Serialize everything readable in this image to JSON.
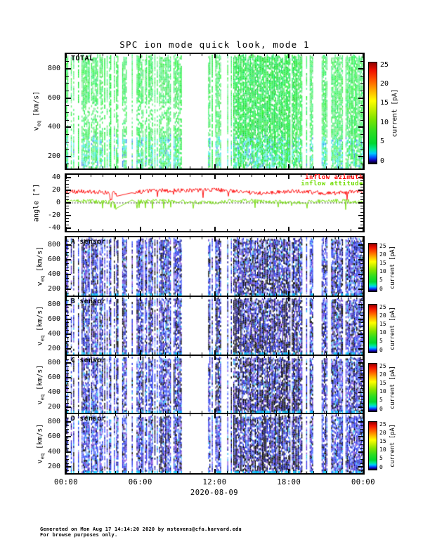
{
  "chart_data": {
    "type": "heatmap",
    "title": "SPC ion mode quick look, mode 1",
    "x_axis": {
      "tick_labels": [
        "00:00",
        "06:00",
        "12:00",
        "18:00",
        "00:00"
      ],
      "tick_hours": [
        0,
        6,
        12,
        18,
        24
      ],
      "minor_tick_hours": 1,
      "range_hours": [
        0,
        24
      ],
      "date_label": "2020-08-09"
    },
    "velocity_axis": {
      "label_base": "v",
      "label_sub": "eq",
      "label_unit": " [km/s]",
      "tick_values": [
        200,
        400,
        600,
        800
      ],
      "range": [
        120,
        900
      ],
      "minor_step": 50
    },
    "angle_panel": {
      "label": "angle [°]",
      "tick_values": [
        40,
        20,
        0,
        -20,
        -40
      ],
      "range": [
        -45,
        45
      ],
      "minor_step": 5,
      "zero_line": "dotted-black",
      "seed": 77,
      "series": [
        {
          "name": "inflow azimuth",
          "color": "#ff0000",
          "typical_deg": 17,
          "noise_deg": 3
        },
        {
          "name": "inflow attitude",
          "color": "#6fdc00",
          "typical_deg": 2,
          "noise_deg": 3.5
        }
      ],
      "data_gap_hours": [
        3.55,
        5.6
      ]
    },
    "colorbar": {
      "label": "current [pA]",
      "tick_labels": [
        "0",
        "5",
        "10",
        "15",
        "20",
        "25"
      ],
      "tick_values": [
        0,
        5,
        10,
        15,
        20,
        25
      ],
      "range_pA": [
        0,
        25
      ],
      "gradient_stops": [
        [
          "0%",
          "#000000"
        ],
        [
          "3%",
          "#1500a8"
        ],
        [
          "6%",
          "#0050ff"
        ],
        [
          "10%",
          "#00c8ff"
        ],
        [
          "14%",
          "#00e896"
        ],
        [
          "20%",
          "#00d830"
        ],
        [
          "32%",
          "#30dd20"
        ],
        [
          "44%",
          "#7ce400"
        ],
        [
          "54%",
          "#c8f000"
        ],
        [
          "62%",
          "#ffff00"
        ],
        [
          "72%",
          "#ffb000"
        ],
        [
          "82%",
          "#ff5a00"
        ],
        [
          "92%",
          "#f01000"
        ],
        [
          "100%",
          "#8f0000"
        ]
      ]
    },
    "spectrogram_panels": [
      {
        "label": "TOTAL",
        "palette": "total",
        "seed": 101,
        "darkness": 0,
        "typical_current_pA": [
          1,
          9
        ],
        "appearance": "green-cyan vertical stripes"
      },
      {
        "label": "A sensor",
        "palette": "sensor",
        "seed": 202,
        "darkness": 0.8,
        "appearance": "blue-black-purple vertical stripes"
      },
      {
        "label": "B sensor",
        "palette": "sensor",
        "seed": 303,
        "darkness": 1.0,
        "appearance": "darkest blue-black stripes"
      },
      {
        "label": "C sensor",
        "palette": "sensor",
        "seed": 404,
        "darkness": 0.9,
        "appearance": "blue-black-purple stripes"
      },
      {
        "label": "D sensor",
        "palette": "sensor",
        "seed": 505,
        "darkness": 0.7,
        "appearance": "lighter blue-cyan stripes"
      }
    ],
    "coverage": {
      "presence_seed": 42,
      "gap_windows_hours": [
        [
          9.35,
          11.3
        ],
        [
          12.45,
          13.25
        ],
        [
          19.95,
          20.6
        ]
      ],
      "sparse_windows_hours": [
        [
          0.15,
          1.05
        ],
        [
          3.1,
          4.0
        ],
        [
          4.0,
          5.6
        ]
      ],
      "dense_window_hours": [
        13.4,
        18.7
      ]
    },
    "footer_lines": [
      "Generated on Mon Aug 17 14:14:20 2020 by mstevens@cfa.harvard.edu",
      "For browse purposes only."
    ]
  }
}
